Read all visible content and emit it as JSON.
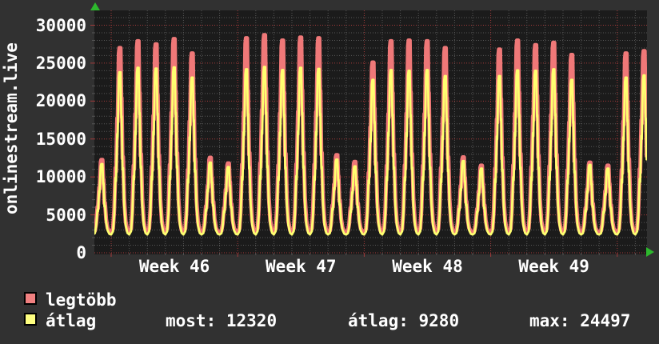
{
  "title": "onlinestream.live",
  "legend": [
    {
      "label": "legtöbb",
      "color": "#f08080"
    },
    {
      "label": "átlag",
      "color": "#ffff80"
    }
  ],
  "stats": [
    {
      "label": "most:",
      "value": "12320"
    },
    {
      "label": "átlag:",
      "value": "9280"
    },
    {
      "label": "max:",
      "value": "24497"
    }
  ],
  "colors": {
    "page_bg": "#313131",
    "plot_bg": "#1b1b1b",
    "grid_minor": "#565656",
    "grid_major": "#a33a3a",
    "line_max": "#ef7878",
    "line_avg": "#ffff70",
    "text": "#ffffff",
    "arrow": "#2db82d"
  },
  "chart_data": {
    "type": "line",
    "title": "onlinestream.live",
    "ylabel": "",
    "xlabel": "",
    "y_ticks": [
      "0",
      "5000",
      "10000",
      "15000",
      "20000",
      "25000",
      "30000"
    ],
    "y_range": [
      0,
      32000
    ],
    "y_major_step": 5000,
    "y_minor_step": 1000,
    "x_week_labels": [
      "Week 46",
      "Week 47",
      "Week 48",
      "Week 49"
    ],
    "days_per_week": 7,
    "grid": "dotted, red majors, gray minors",
    "legend_position": "bottom-left",
    "baseline_trough": 2400,
    "current_most": 12320,
    "overall_atlag": 9280,
    "overall_max": 24497,
    "series": [
      {
        "name": "legtöbb",
        "color": "#ef7878",
        "daily_peaks": [
          12250,
          27000,
          27900,
          27500,
          28200,
          26300,
          12550,
          11800,
          28300,
          28700,
          28000,
          28400,
          28300,
          12900,
          12000,
          25100,
          27900,
          28000,
          27900,
          27000,
          12600,
          11500,
          26800,
          28000,
          27400,
          27700,
          26100,
          11900,
          11500,
          26300,
          26600
        ],
        "trough": 2700,
        "end_value": 12750
      },
      {
        "name": "átlag",
        "color": "#ffff70",
        "daily_peaks": [
          11700,
          23800,
          24400,
          24300,
          24450,
          23100,
          11900,
          11300,
          24200,
          24497,
          24100,
          24400,
          24250,
          12300,
          11400,
          22800,
          24100,
          24000,
          24100,
          23300,
          12100,
          11100,
          23300,
          24050,
          24000,
          24200,
          22800,
          11600,
          11100,
          23100,
          23400
        ],
        "trough": 2400,
        "end_value": 12320
      }
    ]
  }
}
